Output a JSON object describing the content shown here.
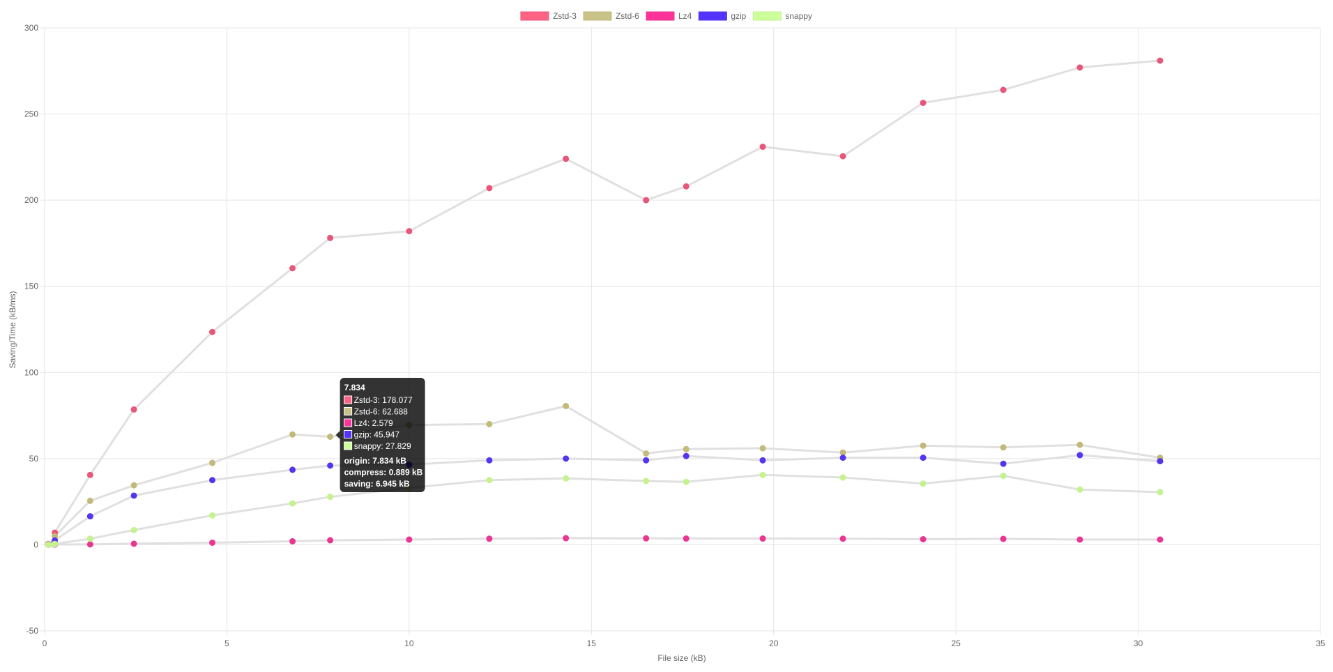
{
  "chart_data": {
    "type": "line",
    "xlabel": "File size (kB)",
    "ylabel": "Saving/Time (kB/ms)",
    "xlim": [
      0,
      35
    ],
    "ylim": [
      -50,
      300
    ],
    "x_ticks": [
      0,
      5,
      10,
      15,
      20,
      25,
      30,
      35
    ],
    "y_ticks": [
      -50,
      0,
      50,
      100,
      150,
      200,
      250,
      300
    ],
    "grid": true,
    "legend_position": "top",
    "line_color": "#e0e0e0",
    "series": [
      {
        "name": "Zstd-3",
        "color": "#ff6384",
        "point_color": "#e8577a",
        "points": [
          [
            0.1,
            0.5
          ],
          [
            0.25,
            1.0
          ],
          [
            0.28,
            7.0
          ],
          [
            1.25,
            40.5
          ],
          [
            2.45,
            78.5
          ],
          [
            4.6,
            123.5
          ],
          [
            6.8,
            160.5
          ],
          [
            7.834,
            178.077
          ],
          [
            10.0,
            182.0
          ],
          [
            12.2,
            207.0
          ],
          [
            14.3,
            224.0
          ],
          [
            16.5,
            200.0
          ],
          [
            17.6,
            208.0
          ],
          [
            19.7,
            231.0
          ],
          [
            21.9,
            225.5
          ],
          [
            24.1,
            256.5
          ],
          [
            26.3,
            264.0
          ],
          [
            28.4,
            277.0
          ],
          [
            30.6,
            281.0
          ]
        ]
      },
      {
        "name": "Zstd-6",
        "color": "#c9c38a",
        "point_color": "#c2b97a",
        "points": [
          [
            0.1,
            0.3
          ],
          [
            0.25,
            0.8
          ],
          [
            0.28,
            5.0
          ],
          [
            1.25,
            25.5
          ],
          [
            2.45,
            34.5
          ],
          [
            4.6,
            47.5
          ],
          [
            6.8,
            64.0
          ],
          [
            7.834,
            62.688
          ],
          [
            10.0,
            69.5
          ],
          [
            12.2,
            70.0
          ],
          [
            14.3,
            80.5
          ],
          [
            16.5,
            53.0
          ],
          [
            17.6,
            55.5
          ],
          [
            19.7,
            56.0
          ],
          [
            21.9,
            53.5
          ],
          [
            24.1,
            57.5
          ],
          [
            26.3,
            56.5
          ],
          [
            28.4,
            58.0
          ],
          [
            30.6,
            50.5
          ]
        ]
      },
      {
        "name": "Lz4",
        "color": "#ff3399",
        "point_color": "#ea3591",
        "points": [
          [
            0.1,
            0.05
          ],
          [
            0.25,
            0.1
          ],
          [
            0.28,
            0.15
          ],
          [
            1.25,
            0.2
          ],
          [
            2.45,
            0.6
          ],
          [
            4.6,
            1.2
          ],
          [
            6.8,
            2.0
          ],
          [
            7.834,
            2.579
          ],
          [
            10.0,
            3.0
          ],
          [
            12.2,
            3.5
          ],
          [
            14.3,
            3.8
          ],
          [
            16.5,
            3.7
          ],
          [
            17.6,
            3.6
          ],
          [
            19.7,
            3.6
          ],
          [
            21.9,
            3.5
          ],
          [
            24.1,
            3.2
          ],
          [
            26.3,
            3.4
          ],
          [
            28.4,
            3.0
          ],
          [
            30.6,
            3.0
          ]
        ]
      },
      {
        "name": "gzip",
        "color": "#5533ff",
        "point_color": "#5535ee",
        "points": [
          [
            0.1,
            0.2
          ],
          [
            0.25,
            0.5
          ],
          [
            0.28,
            2.5
          ],
          [
            1.25,
            16.5
          ],
          [
            2.45,
            28.5
          ],
          [
            4.6,
            37.5
          ],
          [
            6.8,
            43.5
          ],
          [
            7.834,
            45.947
          ],
          [
            10.0,
            46.5
          ],
          [
            12.2,
            49.0
          ],
          [
            14.3,
            50.0
          ],
          [
            16.5,
            49.0
          ],
          [
            17.6,
            51.5
          ],
          [
            19.7,
            49.0
          ],
          [
            21.9,
            50.5
          ],
          [
            24.1,
            50.5
          ],
          [
            26.3,
            47.0
          ],
          [
            28.4,
            52.0
          ],
          [
            30.6,
            48.5
          ]
        ]
      },
      {
        "name": "snappy",
        "color": "#ccff99",
        "point_color": "#c4f28c",
        "points": [
          [
            0.1,
            0.1
          ],
          [
            0.25,
            0.2
          ],
          [
            0.28,
            0.5
          ],
          [
            1.25,
            3.5
          ],
          [
            2.45,
            8.5
          ],
          [
            4.6,
            17.0
          ],
          [
            6.8,
            24.0
          ],
          [
            7.834,
            27.829
          ],
          [
            10.0,
            33.0
          ],
          [
            12.2,
            37.5
          ],
          [
            14.3,
            38.5
          ],
          [
            16.5,
            37.0
          ],
          [
            17.6,
            36.5
          ],
          [
            19.7,
            40.5
          ],
          [
            21.9,
            39.0
          ],
          [
            24.1,
            35.5
          ],
          [
            26.3,
            40.0
          ],
          [
            28.4,
            32.0
          ],
          [
            30.6,
            30.5
          ]
        ]
      }
    ],
    "tooltip": {
      "x": 7.834,
      "title": "7.834",
      "items": [
        {
          "color": "#ff6384",
          "label": "Zstd-3: 178.077"
        },
        {
          "color": "#c9c38a",
          "label": "Zstd-6: 62.688"
        },
        {
          "color": "#ff3399",
          "label": "Lz4: 2.579"
        },
        {
          "color": "#5533ff",
          "label": "gzip: 45.947"
        },
        {
          "color": "#ccff99",
          "label": "snappy: 27.829"
        }
      ],
      "footer": [
        "origin: 7.834 kB",
        "compress: 0.889 kB",
        "saving: 6.945 kB"
      ]
    }
  }
}
